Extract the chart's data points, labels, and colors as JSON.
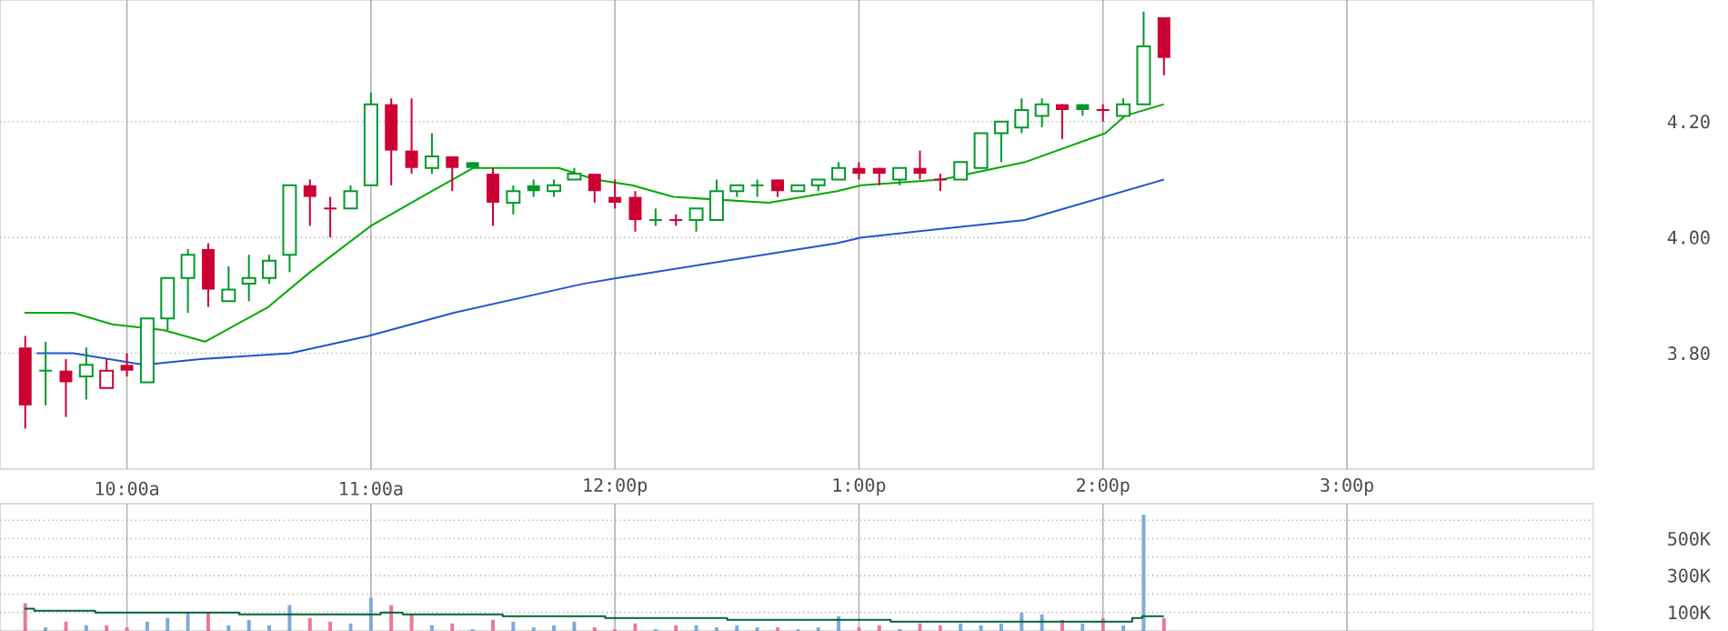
{
  "chart_data": [
    {
      "type": "candlestick",
      "xlim": [
        9.48,
        16.01
      ],
      "ylim": [
        3.6,
        4.41
      ],
      "grid": true,
      "tick_labels": "y",
      "xticks": [
        {
          "value": 10,
          "label": null
        },
        {
          "value": 11,
          "label": null
        },
        {
          "value": 12,
          "label": null
        },
        {
          "value": 13,
          "label": null
        },
        {
          "value": 14,
          "label": null
        },
        {
          "value": 15,
          "label": null
        }
      ],
      "yticks": [
        {
          "value": 3.8,
          "label": "3.80"
        },
        {
          "value": 4.0,
          "label": "4.00"
        },
        {
          "value": 4.2,
          "label": "4.20"
        }
      ],
      "series": [
        {
          "x": [
            9.5833,
            9.6667,
            9.75,
            9.8333,
            9.9167,
            10,
            10.0833,
            10.1667,
            10.25,
            10.3333,
            10.4167,
            10.5,
            10.5833,
            10.6667,
            10.75,
            10.8333,
            10.9167,
            11,
            11.0833,
            11.1667,
            11.25,
            11.3333,
            11.4167,
            11.5,
            11.5833,
            11.6667,
            11.75,
            11.8333,
            11.9167,
            12,
            12.0833,
            12.1667,
            12.25,
            12.3333,
            12.4167,
            12.5,
            12.5833,
            12.6667,
            12.75,
            12.8333,
            12.9167,
            13,
            13.0833,
            13.1667,
            13.25,
            13.3333,
            13.4167,
            13.5,
            13.5833,
            13.6667,
            13.75,
            13.8333,
            13.9167,
            14,
            14.0833,
            14.1667,
            14.25
          ],
          "ohlc": [
            [
              3.81,
              3.83,
              3.67,
              3.71
            ],
            [
              3.77,
              3.82,
              3.71,
              3.77
            ],
            [
              3.77,
              3.79,
              3.69,
              3.75
            ],
            [
              3.76,
              3.81,
              3.72,
              3.78
            ],
            [
              3.74,
              3.79,
              3.74,
              3.77
            ],
            [
              3.78,
              3.8,
              3.76,
              3.77
            ],
            [
              3.75,
              3.86,
              3.75,
              3.86
            ],
            [
              3.86,
              3.93,
              3.84,
              3.93
            ],
            [
              3.93,
              3.98,
              3.87,
              3.97
            ],
            [
              3.98,
              3.99,
              3.88,
              3.91
            ],
            [
              3.89,
              3.95,
              3.89,
              3.91
            ],
            [
              3.92,
              3.97,
              3.89,
              3.93
            ],
            [
              3.93,
              3.97,
              3.92,
              3.96
            ],
            [
              3.97,
              4.09,
              3.94,
              4.09
            ],
            [
              4.09,
              4.1,
              4.02,
              4.07
            ],
            [
              4.05,
              4.07,
              4.0,
              4.05
            ],
            [
              4.05,
              4.09,
              4.05,
              4.08
            ],
            [
              4.09,
              4.25,
              4.09,
              4.23
            ],
            [
              4.23,
              4.24,
              4.09,
              4.15
            ],
            [
              4.15,
              4.24,
              4.11,
              4.12
            ],
            [
              4.12,
              4.18,
              4.11,
              4.14
            ],
            [
              4.14,
              4.14,
              4.08,
              4.12
            ],
            [
              4.13,
              4.13,
              4.12,
              4.12
            ],
            [
              4.11,
              4.12,
              4.02,
              4.06
            ],
            [
              4.06,
              4.09,
              4.04,
              4.08
            ],
            [
              4.09,
              4.1,
              4.07,
              4.08
            ],
            [
              4.08,
              4.1,
              4.07,
              4.09
            ],
            [
              4.1,
              4.12,
              4.1,
              4.11
            ],
            [
              4.11,
              4.11,
              4.06,
              4.08
            ],
            [
              4.07,
              4.1,
              4.05,
              4.06
            ],
            [
              4.07,
              4.08,
              4.01,
              4.03
            ],
            [
              4.03,
              4.05,
              4.02,
              4.03
            ],
            [
              4.03,
              4.04,
              4.02,
              4.03
            ],
            [
              4.03,
              4.05,
              4.01,
              4.05
            ],
            [
              4.03,
              4.1,
              4.03,
              4.08
            ],
            [
              4.08,
              4.09,
              4.07,
              4.09
            ],
            [
              4.09,
              4.1,
              4.07,
              4.09
            ],
            [
              4.1,
              4.1,
              4.07,
              4.08
            ],
            [
              4.08,
              4.09,
              4.08,
              4.09
            ],
            [
              4.09,
              4.1,
              4.08,
              4.1
            ],
            [
              4.1,
              4.13,
              4.1,
              4.12
            ],
            [
              4.12,
              4.13,
              4.1,
              4.11
            ],
            [
              4.12,
              4.12,
              4.09,
              4.11
            ],
            [
              4.1,
              4.12,
              4.09,
              4.12
            ],
            [
              4.12,
              4.15,
              4.1,
              4.11
            ],
            [
              4.1,
              4.11,
              4.08,
              4.1
            ],
            [
              4.1,
              4.13,
              4.1,
              4.13
            ],
            [
              4.12,
              4.18,
              4.12,
              4.18
            ],
            [
              4.18,
              4.2,
              4.13,
              4.2
            ],
            [
              4.19,
              4.24,
              4.18,
              4.22
            ],
            [
              4.21,
              4.24,
              4.19,
              4.23
            ],
            [
              4.23,
              4.23,
              4.17,
              4.22
            ],
            [
              4.23,
              4.23,
              4.21,
              4.22
            ],
            [
              4.22,
              4.23,
              4.2,
              4.22
            ],
            [
              4.21,
              4.24,
              4.21,
              4.23
            ],
            [
              4.23,
              4.39,
              4.23,
              4.33
            ],
            [
              4.38,
              4.38,
              4.28,
              4.31
            ]
          ],
          "colors": [
            "#cc0033",
            "#00992b",
            "#cc0033",
            "#00992b",
            "#cc0033",
            "#cc0033",
            "#00992b",
            "#00992b",
            "#00992b",
            "#cc0033",
            "#00992b",
            "#00992b",
            "#00992b",
            "#00992b",
            "#cc0033",
            "#cc0033",
            "#00992b",
            "#00992b",
            "#cc0033",
            "#cc0033",
            "#00992b",
            "#cc0033",
            "#00992b",
            "#cc0033",
            "#00992b",
            "#00992b",
            "#00992b",
            "#00992b",
            "#cc0033",
            "#cc0033",
            "#cc0033",
            "#00992b",
            "#cc0033",
            "#00992b",
            "#00992b",
            "#00992b",
            "#00992b",
            "#cc0033",
            "#00992b",
            "#00992b",
            "#00992b",
            "#cc0033",
            "#cc0033",
            "#00992b",
            "#cc0033",
            "#cc0033",
            "#00992b",
            "#00992b",
            "#00992b",
            "#00992b",
            "#00992b",
            "#cc0033",
            "#00992b",
            "#cc0033",
            "#00992b",
            "#00992b",
            "#cc0033"
          ]
        },
        {
          "type": "line",
          "color": "#00aa00",
          "x": [
            9.58,
            9.78,
            9.94,
            10.15,
            10.32,
            10.58,
            10.75,
            11,
            11.25,
            11.42,
            11.63,
            11.77,
            11.92,
            12.07,
            12.24,
            12.63,
            12.91,
            13.01,
            13.34,
            13.68,
            14.01,
            14.09,
            14.25
          ],
          "values": [
            3.87,
            3.87,
            3.85,
            3.84,
            3.82,
            3.88,
            3.94,
            4.02,
            4.08,
            4.12,
            4.12,
            4.12,
            4.1,
            4.09,
            4.07,
            4.06,
            4.08,
            4.09,
            4.1,
            4.13,
            4.18,
            4.21,
            4.23
          ]
        },
        {
          "type": "line",
          "color": "#2255cc",
          "x": [
            9.63,
            9.78,
            10.07,
            10.3,
            10.67,
            10.99,
            11.34,
            11.87,
            12.01,
            12.91,
            13.01,
            13.68,
            14.25
          ],
          "values": [
            3.8,
            3.8,
            3.78,
            3.79,
            3.8,
            3.83,
            3.87,
            3.92,
            3.93,
            3.99,
            4.0,
            4.03,
            4.1
          ]
        }
      ]
    },
    {
      "type": "bar",
      "xlim": [
        9.48,
        16.01
      ],
      "ylim": [
        0,
        690000
      ],
      "grid": true,
      "xticks": [
        {
          "value": 10,
          "label": "10:00a"
        },
        {
          "value": 11,
          "label": "11:00a"
        },
        {
          "value": 12,
          "label": "12:00p"
        },
        {
          "value": 13,
          "label": "1:00p"
        },
        {
          "value": 14,
          "label": "2:00p"
        },
        {
          "value": 15,
          "label": "3:00p"
        }
      ],
      "yticks": [
        {
          "value": 100000,
          "label": "100K"
        },
        {
          "value": 200000,
          "label": null
        },
        {
          "value": 300000,
          "label": "300K"
        },
        {
          "value": 400000,
          "label": null
        },
        {
          "value": 500000,
          "label": "500K"
        },
        {
          "value": 600000,
          "label": null
        }
      ],
      "series": [
        {
          "x": [
            9.5833,
            9.6667,
            9.75,
            9.8333,
            9.9167,
            10,
            10.0833,
            10.1667,
            10.25,
            10.3333,
            10.4167,
            10.5,
            10.5833,
            10.6667,
            10.75,
            10.8333,
            10.9167,
            11,
            11.0833,
            11.1667,
            11.25,
            11.3333,
            11.4167,
            11.5,
            11.5833,
            11.6667,
            11.75,
            11.8333,
            11.9167,
            12,
            12.0833,
            12.1667,
            12.25,
            12.3333,
            12.4167,
            12.5,
            12.5833,
            12.6667,
            12.75,
            12.8333,
            12.9167,
            13,
            13.0833,
            13.1667,
            13.25,
            13.3333,
            13.4167,
            13.5,
            13.5833,
            13.6667,
            13.75,
            13.8333,
            13.9167,
            14,
            14.0833,
            14.1667,
            14.25
          ],
          "values": [
            150000,
            20000,
            50000,
            30000,
            30000,
            20000,
            50000,
            70000,
            100000,
            100000,
            30000,
            60000,
            30000,
            140000,
            70000,
            50000,
            40000,
            180000,
            140000,
            90000,
            30000,
            40000,
            10000,
            60000,
            50000,
            20000,
            30000,
            50000,
            20000,
            10000,
            40000,
            10000,
            30000,
            30000,
            20000,
            30000,
            20000,
            20000,
            10000,
            20000,
            80000,
            20000,
            30000,
            10000,
            40000,
            30000,
            40000,
            30000,
            40000,
            100000,
            90000,
            60000,
            40000,
            70000,
            30000,
            630000,
            70000
          ],
          "colors": [
            "#e87a96",
            "#7eaad6",
            "#e87a96",
            "#7eaad6",
            "#e87a96",
            "#e87a96",
            "#7eaad6",
            "#7eaad6",
            "#7eaad6",
            "#e87a96",
            "#7eaad6",
            "#7eaad6",
            "#7eaad6",
            "#7eaad6",
            "#e87a96",
            "#e87a96",
            "#7eaad6",
            "#7eaad6",
            "#e87a96",
            "#e87a96",
            "#7eaad6",
            "#e87a96",
            "#7eaad6",
            "#e87a96",
            "#7eaad6",
            "#7eaad6",
            "#7eaad6",
            "#7eaad6",
            "#e87a96",
            "#e87a96",
            "#e87a96",
            "#7eaad6",
            "#e87a96",
            "#7eaad6",
            "#7eaad6",
            "#7eaad6",
            "#7eaad6",
            "#e87a96",
            "#7eaad6",
            "#7eaad6",
            "#7eaad6",
            "#e87a96",
            "#e87a96",
            "#7eaad6",
            "#e87a96",
            "#e87a96",
            "#7eaad6",
            "#7eaad6",
            "#7eaad6",
            "#7eaad6",
            "#7eaad6",
            "#e87a96",
            "#7eaad6",
            "#e87a96",
            "#7eaad6",
            "#7eaad6",
            "#e87a96"
          ]
        },
        {
          "type": "step",
          "color": "#006633",
          "x": [
            9.58,
            9.62,
            9.87,
            10.46,
            11.04,
            11.13,
            11.54,
            11.96,
            12.46,
            13.13,
            14.12,
            14.16,
            14.25
          ],
          "values": [
            120000,
            110000,
            100000,
            90000,
            100000,
            90000,
            80000,
            70000,
            60000,
            50000,
            70000,
            80000,
            80000
          ]
        }
      ]
    }
  ]
}
